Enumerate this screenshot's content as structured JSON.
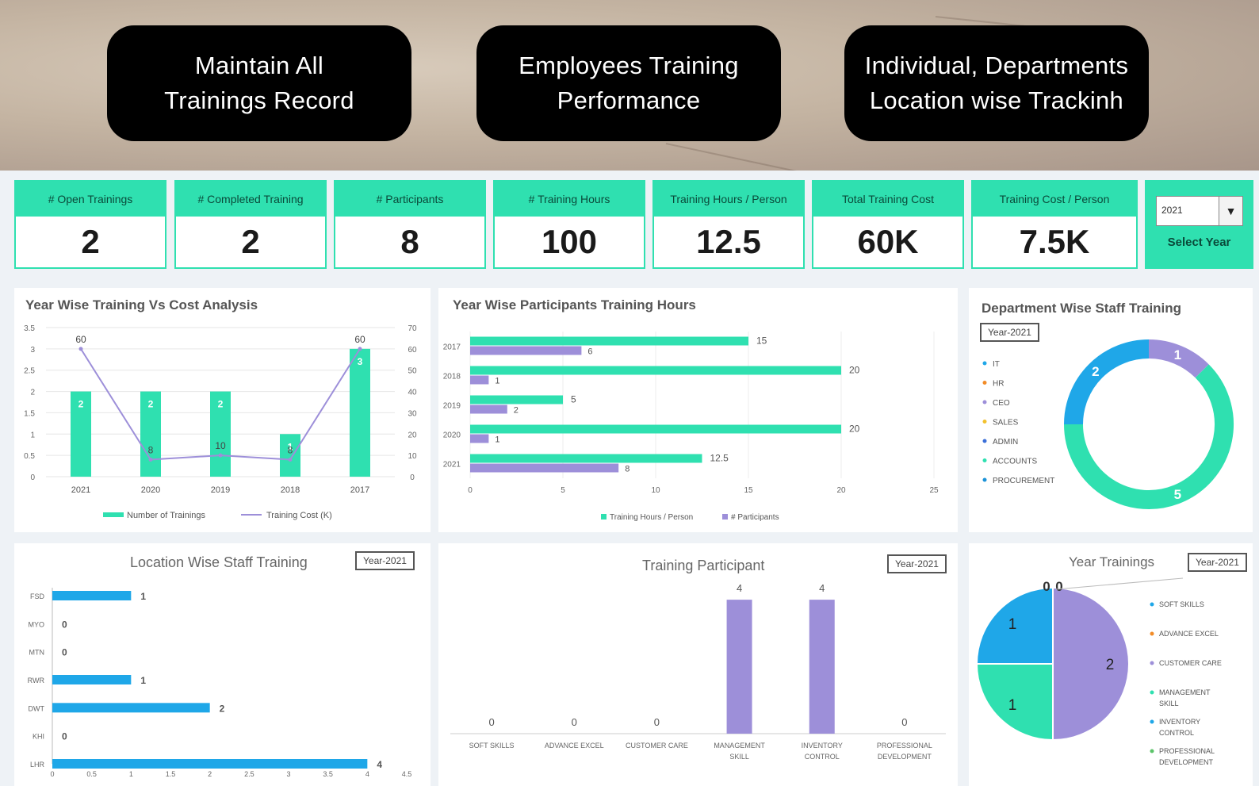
{
  "banner": {
    "pills": [
      {
        "line1": "Maintain All",
        "line2": "Trainings Record"
      },
      {
        "line1": "Employees Training",
        "line2": "Performance"
      },
      {
        "line1": "Individual, Departments",
        "line2": "Location wise Trackinh"
      }
    ]
  },
  "kpis": [
    {
      "title": "# Open Trainings",
      "value": "2"
    },
    {
      "title": "# Completed Training",
      "value": "2"
    },
    {
      "title": "# Participants",
      "value": "8"
    },
    {
      "title": "# Training Hours",
      "value": "100"
    },
    {
      "title": "Training Hours / Person",
      "value": "12.5"
    },
    {
      "title": "Total Training Cost",
      "value": "60K"
    },
    {
      "title": "Training Cost / Person",
      "value": "7.5K"
    }
  ],
  "year_selector": {
    "value": "2021",
    "label": "Select Year"
  },
  "panels": {
    "cost_analysis": {
      "title": "Year Wise Training Vs Cost Analysis"
    },
    "participants_hours": {
      "title": "Year Wise Participants Training Hours"
    },
    "department": {
      "title": "Department Wise Staff Training",
      "badge": "Year-2021"
    },
    "location": {
      "title": "Location Wise Staff Training",
      "badge": "Year-2021"
    },
    "training_participant": {
      "title": "Training Participant",
      "badge": "Year-2021"
    },
    "year_trainings": {
      "title": "Year Trainings",
      "badge": "Year-2021"
    }
  },
  "colors": {
    "teal": "#2fe0b0",
    "purple": "#9d8fd9",
    "blue": "#1fa7e8",
    "orange": "#f28c28",
    "yellow": "#f2c12e",
    "green": "#5cc46a"
  },
  "chart_data": [
    {
      "type": "bar",
      "title": "Year Wise Training Vs Cost Analysis",
      "categories": [
        "2021",
        "2020",
        "2019",
        "2018",
        "2017"
      ],
      "series": [
        {
          "name": "Number of Trainings",
          "type": "bar",
          "axis": "left",
          "values": [
            2,
            2,
            2,
            1,
            3
          ]
        },
        {
          "name": "Training Cost (K)",
          "type": "line",
          "axis": "right",
          "values": [
            60,
            8,
            10,
            8,
            60
          ]
        }
      ],
      "ylim_left": [
        0,
        3.5
      ],
      "yticks_left": [
        "0",
        "0.5",
        "1",
        "1.5",
        "2",
        "2.5",
        "3",
        "3.5"
      ],
      "ylim_right": [
        0,
        70
      ],
      "yticks_right": [
        "0",
        "10",
        "20",
        "30",
        "40",
        "50",
        "60",
        "70"
      ],
      "legend": "bottom"
    },
    {
      "type": "bar",
      "orientation": "horizontal",
      "title": "Year Wise Participants Training Hours",
      "categories": [
        "2017",
        "2018",
        "2019",
        "2020",
        "2021"
      ],
      "series": [
        {
          "name": "Training Hours / Person",
          "values": [
            15,
            20,
            5,
            20,
            12.5
          ]
        },
        {
          "name": "# Participants",
          "values": [
            6,
            1,
            2,
            1,
            8
          ]
        }
      ],
      "xlim": [
        0,
        25
      ],
      "xticks": [
        "0",
        "5",
        "10",
        "15",
        "20",
        "25"
      ],
      "value_labels": [
        [
          "15",
          "20",
          "5",
          "20",
          "12.5"
        ],
        [
          "6",
          "1",
          "2",
          "1",
          "8"
        ]
      ],
      "legend": "bottom"
    },
    {
      "type": "pie",
      "donut": true,
      "title": "Department Wise Staff Training",
      "labels": [
        "IT",
        "HR",
        "CEO",
        "SALES",
        "ADMIN",
        "ACCOUNTS",
        "PROCUREMENT"
      ],
      "values": [
        0,
        0,
        1,
        0,
        0,
        5,
        2
      ],
      "value_labels": [
        "",
        "",
        "1",
        "",
        "",
        "5",
        "2"
      ],
      "legend": "left"
    },
    {
      "type": "bar",
      "orientation": "horizontal",
      "title": "Location Wise Staff Training",
      "categories": [
        "FSD",
        "MYO",
        "MTN",
        "RWR",
        "DWT",
        "KHI",
        "LHR"
      ],
      "values": [
        1,
        0,
        0,
        1,
        2,
        0,
        4
      ],
      "value_labels": [
        "1",
        "0",
        "0",
        "1",
        "2",
        "0",
        "4"
      ],
      "xlim": [
        0,
        4.5
      ],
      "xticks": [
        "0",
        "0.5",
        "1",
        "1.5",
        "2",
        "2.5",
        "3",
        "3.5",
        "4",
        "4.5"
      ]
    },
    {
      "type": "bar",
      "title": "Training Participant",
      "categories": [
        "SOFT SKILLS",
        "ADVANCE EXCEL",
        "CUSTOMER CARE",
        "MANAGEMENT SKILL",
        "INVENTORY CONTROL",
        "PROFESSIONAL DEVELOPMENT"
      ],
      "values": [
        0,
        0,
        0,
        4,
        4,
        0
      ],
      "value_labels": [
        "0",
        "0",
        "0",
        "4",
        "4",
        "0"
      ],
      "ylim": [
        0,
        4.5
      ]
    },
    {
      "type": "pie",
      "title": "Year Trainings",
      "labels": [
        "SOFT SKILLS",
        "ADVANCE EXCEL",
        "CUSTOMER CARE",
        "MANAGEMENT SKILL",
        "INVENTORY CONTROL",
        "PROFESSIONAL DEVELOPMENT"
      ],
      "values": [
        0,
        0,
        2,
        1,
        1,
        0
      ],
      "value_labels": [
        "0",
        "0",
        "2",
        "1",
        "1",
        ""
      ],
      "legend": "right"
    }
  ]
}
